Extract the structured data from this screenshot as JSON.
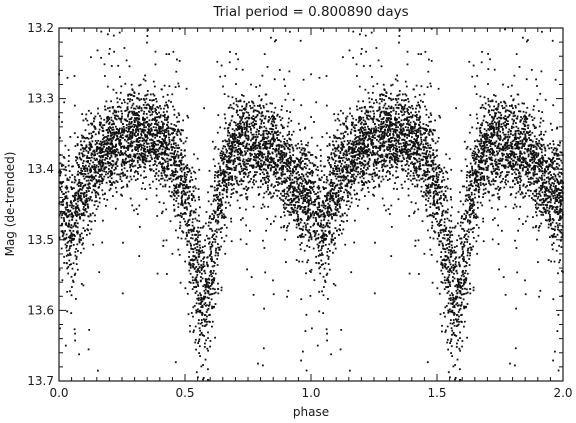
{
  "chart_data": {
    "type": "scatter",
    "title": "Trial period = 0.800890 days",
    "xlabel": "phase",
    "ylabel": "Mag (de-trended)",
    "xlim": [
      0.0,
      2.0
    ],
    "ylim": [
      13.2,
      13.7
    ],
    "y_inverted": true,
    "grid": false,
    "legend": "none",
    "marker_color": "#111111",
    "x_ticks": [
      "0.0",
      "0.5",
      "1.0",
      "1.5",
      "2.0"
    ],
    "x_tick_values": [
      0.0,
      0.5,
      1.0,
      1.5,
      2.0
    ],
    "y_ticks": [
      "13.2",
      "13.3",
      "13.4",
      "13.5",
      "13.6",
      "13.7"
    ],
    "y_tick_values": [
      13.2,
      13.3,
      13.4,
      13.5,
      13.6,
      13.7
    ],
    "light_curve_profile": {
      "phase": [
        0.0,
        0.05,
        0.1,
        0.15,
        0.2,
        0.25,
        0.3,
        0.35,
        0.4,
        0.45,
        0.5,
        0.53,
        0.56,
        0.58,
        0.6,
        0.63,
        0.66,
        0.7,
        0.75,
        0.8,
        0.85,
        0.9,
        0.95,
        1.0
      ],
      "mean_mag": [
        13.44,
        13.48,
        13.42,
        13.39,
        13.37,
        13.36,
        13.35,
        13.35,
        13.36,
        13.38,
        13.43,
        13.5,
        13.57,
        13.59,
        13.55,
        13.46,
        13.4,
        13.37,
        13.36,
        13.37,
        13.38,
        13.4,
        13.43,
        13.44
      ]
    },
    "approx_points": 9000,
    "notes": "Phase-folded light curve plotted twice over phase 0-2; primary minimum near phase 0.58 (~13.59 mag), secondary minimum near phase 0.05 (~13.48 mag), maximum ~13.35 mag."
  }
}
